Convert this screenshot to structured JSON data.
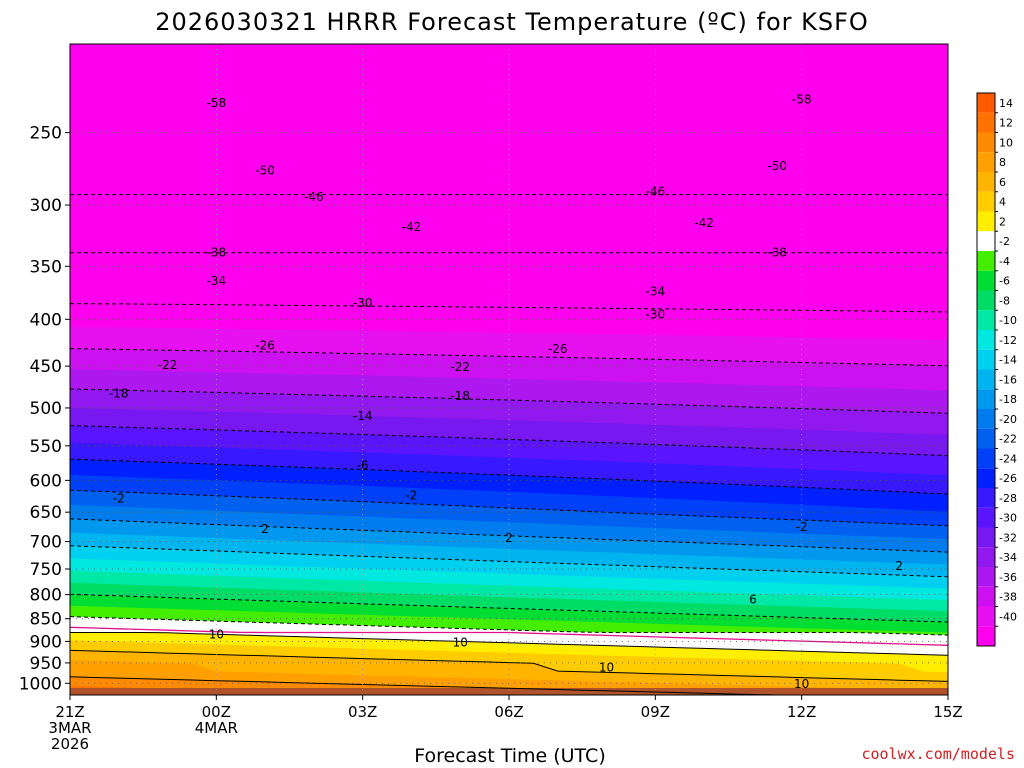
{
  "chart_data": {
    "type": "heatmap",
    "title": "2026030321 HRRR Forecast Temperature (ºC) for KSFO",
    "xlabel": "Forecast Time (UTC)",
    "ylabel": "",
    "credit": "coolwx.com/models",
    "x_ticks": [
      {
        "hour": 0,
        "lines": [
          "21Z",
          "3MAR",
          "2026"
        ]
      },
      {
        "hour": 3,
        "lines": [
          "00Z",
          "4MAR"
        ]
      },
      {
        "hour": 6,
        "lines": [
          "03Z"
        ]
      },
      {
        "hour": 9,
        "lines": [
          "06Z"
        ]
      },
      {
        "hour": 12,
        "lines": [
          "09Z"
        ]
      },
      {
        "hour": 15,
        "lines": [
          "12Z"
        ]
      },
      {
        "hour": 18,
        "lines": [
          "15Z"
        ]
      }
    ],
    "xlim": [
      0,
      18
    ],
    "y_ticks": [
      "250",
      "300",
      "350",
      "400",
      "450",
      "500",
      "550",
      "600",
      "650",
      "700",
      "750",
      "800",
      "850",
      "900",
      "950",
      "1000"
    ],
    "ylim_pressure_hPa": [
      1030,
      200
    ],
    "y_scale": "log",
    "colorbar": {
      "labels": [
        "14",
        "12",
        "10",
        "8",
        "6",
        "4",
        "2",
        "-2",
        "-4",
        "-6",
        "-8",
        "-10",
        "-12",
        "-14",
        "-16",
        "-18",
        "-20",
        "-22",
        "-24",
        "-26",
        "-28",
        "-30",
        "-32",
        "-34",
        "-36",
        "-38",
        "-40"
      ],
      "colors": [
        "#ff5a00",
        "#ff7200",
        "#ff8a00",
        "#ffa000",
        "#ffb400",
        "#ffcc00",
        "#ffee00",
        "#ffffff",
        "#44ee00",
        "#00dd33",
        "#00dd66",
        "#00e8a6",
        "#00e8e0",
        "#00d0f0",
        "#00b4f0",
        "#0098ee",
        "#007cee",
        "#0060f0",
        "#0040f8",
        "#0020ff",
        "#3818ff",
        "#5a14ff",
        "#7818f0",
        "#9218f0",
        "#ae18f0",
        "#cc10f0",
        "#e610f0",
        "#ff00ee"
      ]
    },
    "isotherms": [
      {
        "label": "-58",
        "hour": 3,
        "pressure": 232,
        "style": "dashed"
      },
      {
        "label": "-58",
        "hour": 15,
        "pressure": 230,
        "style": "dashed"
      },
      {
        "label": "-50",
        "hour": 4,
        "pressure": 275,
        "style": "dashed"
      },
      {
        "label": "-50",
        "hour": 14.5,
        "pressure": 272,
        "style": "dashed"
      },
      {
        "label": "-46",
        "hour": 5,
        "pressure": 294,
        "style": "dashed"
      },
      {
        "label": "-46",
        "hour": 12,
        "pressure": 290,
        "style": "dashed"
      },
      {
        "label": "-42",
        "hour": 7,
        "pressure": 317,
        "style": "dashed"
      },
      {
        "label": "-42",
        "hour": 13,
        "pressure": 314,
        "style": "dashed"
      },
      {
        "label": "-38",
        "hour": 3,
        "pressure": 338,
        "style": "dashed"
      },
      {
        "label": "-38",
        "hour": 14.5,
        "pressure": 338,
        "style": "dashed"
      },
      {
        "label": "-34",
        "hour": 3,
        "pressure": 363,
        "style": "dashed"
      },
      {
        "label": "-34",
        "hour": 12,
        "pressure": 373,
        "style": "dashed"
      },
      {
        "label": "-30",
        "hour": 6,
        "pressure": 384,
        "style": "dashed"
      },
      {
        "label": "-30",
        "hour": 12,
        "pressure": 395,
        "style": "dashed"
      },
      {
        "label": "-26",
        "hour": 4,
        "pressure": 427,
        "style": "dashed"
      },
      {
        "label": "-26",
        "hour": 10,
        "pressure": 431,
        "style": "dashed"
      },
      {
        "label": "-22",
        "hour": 2,
        "pressure": 449,
        "style": "dashed"
      },
      {
        "label": "-22",
        "hour": 8,
        "pressure": 451,
        "style": "dashed"
      },
      {
        "label": "-18",
        "hour": 1,
        "pressure": 482,
        "style": "dashed"
      },
      {
        "label": "-18",
        "hour": 8,
        "pressure": 485,
        "style": "dashed"
      },
      {
        "label": "-14",
        "hour": 6,
        "pressure": 510,
        "style": "dashed"
      },
      {
        "label": "-6",
        "hour": 6,
        "pressure": 578,
        "style": "dashed"
      },
      {
        "label": "-2",
        "hour": 1,
        "pressure": 628,
        "style": "dashed"
      },
      {
        "label": "-2",
        "hour": 7,
        "pressure": 623,
        "style": "dashed"
      },
      {
        "label": "-2",
        "hour": 15,
        "pressure": 675,
        "style": "dashed"
      },
      {
        "label": "2",
        "hour": 4,
        "pressure": 678,
        "style": "solid"
      },
      {
        "label": "2",
        "hour": 9,
        "pressure": 694,
        "style": "solid"
      },
      {
        "label": "2",
        "hour": 17,
        "pressure": 744,
        "style": "solid"
      },
      {
        "label": "6",
        "hour": 14,
        "pressure": 810,
        "style": "solid"
      },
      {
        "label": "10",
        "hour": 3,
        "pressure": 885,
        "style": "solid"
      },
      {
        "label": "10",
        "hour": 8,
        "pressure": 903,
        "style": "solid"
      },
      {
        "label": "10",
        "hour": 11,
        "pressure": 961,
        "style": "solid"
      },
      {
        "label": "10",
        "hour": 15,
        "pressure": 1002,
        "style": "solid"
      }
    ]
  }
}
